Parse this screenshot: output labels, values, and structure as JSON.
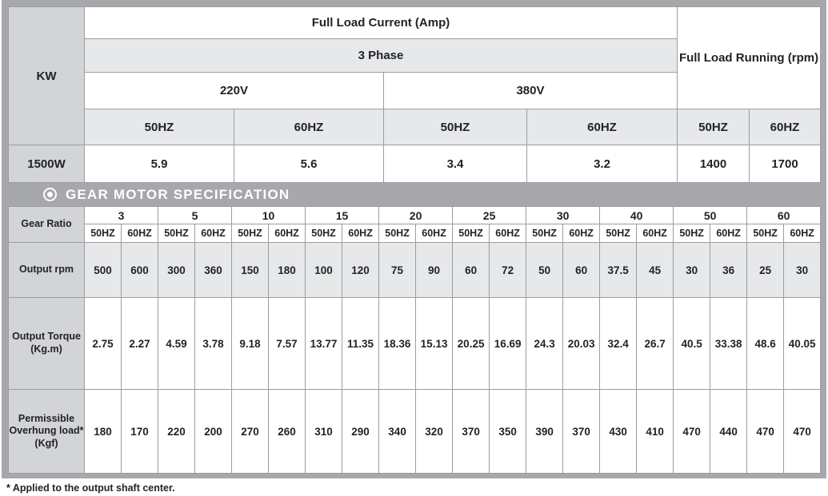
{
  "page": {
    "footnote": "* Applied to the output shaft center."
  },
  "colors": {
    "frame_gray": "#a6a8ab",
    "label_gray": "#d3d4d6",
    "row_light_gray": "#e7e8e9",
    "grid_line": "#9b9da0",
    "text": "#222326",
    "section_text": "#ffffff"
  },
  "power_table": {
    "kw_label": "KW",
    "full_load_current_label": "Full Load Current (Amp)",
    "phase_label": "3 Phase",
    "voltage_labels": [
      "220V",
      "380V"
    ],
    "full_load_running_label": "Full Load Running (rpm)",
    "hz_headers": [
      "50HZ",
      "60HZ",
      "50HZ",
      "60HZ",
      "50HZ",
      "60HZ"
    ],
    "row": {
      "kw": "1500W",
      "values": [
        "5.9",
        "5.6",
        "3.4",
        "3.2",
        "1400",
        "1700"
      ]
    }
  },
  "section": {
    "icon": "target-icon",
    "title": "GEAR MOTOR SPECIFICATION"
  },
  "gear_table": {
    "gear_ratio_label": "Gear Ratio",
    "ratios": [
      "3",
      "5",
      "10",
      "15",
      "20",
      "25",
      "30",
      "40",
      "50",
      "60"
    ],
    "hz_sub": [
      "50HZ",
      "60HZ"
    ],
    "rows": [
      {
        "label": "Output rpm",
        "values": [
          "500",
          "600",
          "300",
          "360",
          "150",
          "180",
          "100",
          "120",
          "75",
          "90",
          "60",
          "72",
          "50",
          "60",
          "37.5",
          "45",
          "30",
          "36",
          "25",
          "30"
        ]
      },
      {
        "label": "Output Torque\n(Kg.m)",
        "values": [
          "2.75",
          "2.27",
          "4.59",
          "3.78",
          "9.18",
          "7.57",
          "13.77",
          "11.35",
          "18.36",
          "15.13",
          "20.25",
          "16.69",
          "24.3",
          "20.03",
          "32.4",
          "26.7",
          "40.5",
          "33.38",
          "48.6",
          "40.05"
        ]
      },
      {
        "label": "Permissible\nOverhung load*\n(Kgf)",
        "values": [
          "180",
          "170",
          "220",
          "200",
          "270",
          "260",
          "310",
          "290",
          "340",
          "320",
          "370",
          "350",
          "390",
          "370",
          "430",
          "410",
          "470",
          "440",
          "470",
          "470"
        ]
      }
    ]
  }
}
